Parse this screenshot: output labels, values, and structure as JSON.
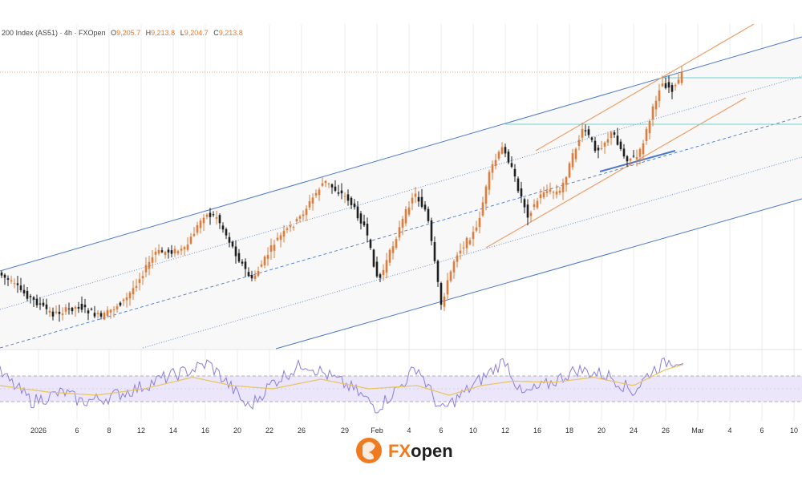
{
  "header": {
    "symbol": "200 Index (AS51) · 4h · FXOpen",
    "open_label": "O",
    "open": "9,205.7",
    "high_label": "H",
    "high": "9,213.8",
    "low_label": "L",
    "low": "9,204.7",
    "close_label": "C",
    "close": "9,213.8"
  },
  "brand": {
    "logo_fx": "FX",
    "logo_open": "open"
  },
  "colors": {
    "up": "#e07b39",
    "down": "#1f1f1f",
    "channel": "#4a78c8",
    "orange_channel": "#e9a06a",
    "level": "#6fd0cf",
    "rsi": "#8b7fd8",
    "rsi_ma": "#e8c45a",
    "rsi_band": "#ece6fb",
    "logo": "#f07a1e"
  },
  "chart_data": {
    "type": "candlestick",
    "timeframe": "4h",
    "x_ticks": [
      "2026",
      "6",
      "8",
      "12",
      "14",
      "16",
      "20",
      "22",
      "26",
      "29",
      "Feb",
      "4",
      "6",
      "10",
      "12",
      "16",
      "18",
      "20",
      "24",
      "26",
      "Mar",
      "4",
      "6",
      "10"
    ],
    "price_path": [
      [
        0,
        340
      ],
      [
        40,
        372
      ],
      [
        68,
        392
      ],
      [
        100,
        382
      ],
      [
        128,
        396
      ],
      [
        160,
        372
      ],
      [
        196,
        315
      ],
      [
        232,
        312
      ],
      [
        256,
        268
      ],
      [
        272,
        270
      ],
      [
        298,
        320
      ],
      [
        316,
        350
      ],
      [
        346,
        300
      ],
      [
        374,
        274
      ],
      [
        406,
        226
      ],
      [
        436,
        248
      ],
      [
        456,
        282
      ],
      [
        474,
        352
      ],
      [
        494,
        300
      ],
      [
        518,
        240
      ],
      [
        534,
        265
      ],
      [
        552,
        380
      ],
      [
        570,
        318
      ],
      [
        596,
        286
      ],
      [
        614,
        210
      ],
      [
        630,
        182
      ],
      [
        648,
        235
      ],
      [
        660,
        268
      ],
      [
        680,
        238
      ],
      [
        700,
        240
      ],
      [
        722,
        178
      ],
      [
        730,
        160
      ],
      [
        746,
        188
      ],
      [
        766,
        165
      ],
      [
        782,
        198
      ],
      [
        798,
        196
      ],
      [
        812,
        150
      ],
      [
        826,
        103
      ],
      [
        842,
        112
      ],
      [
        852,
        93
      ]
    ],
    "rsi": {
      "upper_level": 70,
      "lower_level": 30,
      "path": [
        [
          0,
          75
        ],
        [
          40,
          30
        ],
        [
          80,
          45
        ],
        [
          100,
          30
        ],
        [
          130,
          35
        ],
        [
          170,
          50
        ],
        [
          200,
          65
        ],
        [
          240,
          80
        ],
        [
          260,
          90
        ],
        [
          290,
          50
        ],
        [
          310,
          20
        ],
        [
          340,
          60
        ],
        [
          380,
          90
        ],
        [
          410,
          70
        ],
        [
          440,
          50
        ],
        [
          470,
          20
        ],
        [
          500,
          55
        ],
        [
          520,
          85
        ],
        [
          550,
          15
        ],
        [
          575,
          40
        ],
        [
          600,
          65
        ],
        [
          630,
          95
        ],
        [
          650,
          40
        ],
        [
          680,
          55
        ],
        [
          720,
          80
        ],
        [
          760,
          70
        ],
        [
          790,
          45
        ],
        [
          810,
          75
        ],
        [
          830,
          92
        ],
        [
          852,
          96
        ]
      ],
      "ma_path": [
        [
          0,
          55
        ],
        [
          60,
          45
        ],
        [
          120,
          40
        ],
        [
          180,
          50
        ],
        [
          240,
          68
        ],
        [
          290,
          55
        ],
        [
          340,
          50
        ],
        [
          400,
          65
        ],
        [
          460,
          50
        ],
        [
          520,
          55
        ],
        [
          560,
          40
        ],
        [
          600,
          55
        ],
        [
          640,
          62
        ],
        [
          690,
          60
        ],
        [
          740,
          68
        ],
        [
          790,
          55
        ],
        [
          830,
          80
        ],
        [
          852,
          88
        ]
      ]
    }
  }
}
